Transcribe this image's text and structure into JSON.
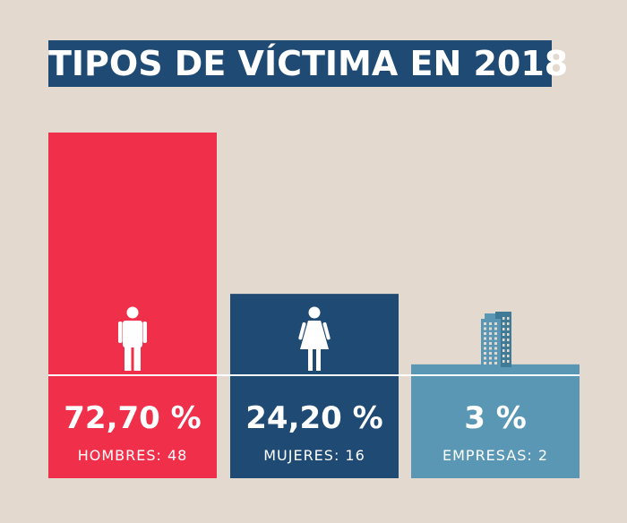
{
  "title": "TIPOS DE VÍCTIMA EN 2018",
  "colors": {
    "background": "#e3d9ce",
    "title_bg": "#1f4a73",
    "hombres": "#f0304a",
    "mujeres": "#1f4a73",
    "empresas": "#5a97b4"
  },
  "chart_data": {
    "type": "bar",
    "title": "TIPOS DE VÍCTIMA EN 2018",
    "categories": [
      "HOMBRES",
      "MUJERES",
      "EMPRESAS"
    ],
    "values": [
      72.7,
      24.2,
      3
    ],
    "value_labels": [
      "72,70 %",
      "24,20 %",
      "3 %"
    ],
    "count_labels": [
      "HOMBRES: 48",
      "MUJERES: 16",
      "EMPRESAS: 2"
    ],
    "counts": [
      48,
      16,
      2
    ],
    "icons": [
      "man-icon",
      "woman-icon",
      "building-icon"
    ],
    "grid": false
  }
}
